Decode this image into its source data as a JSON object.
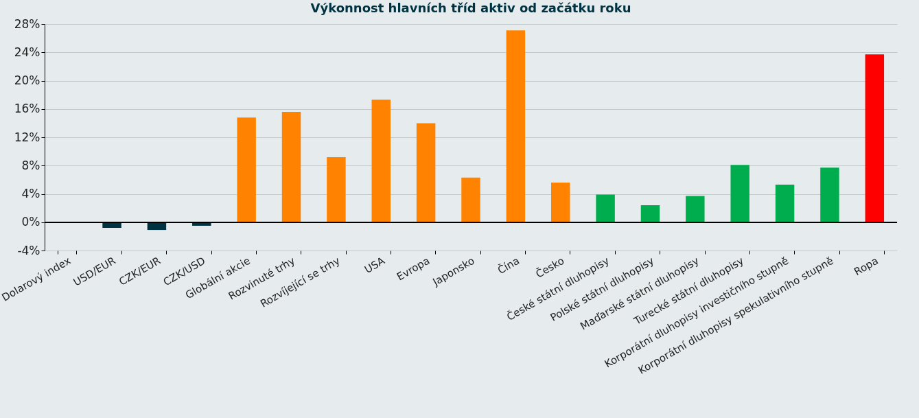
{
  "chart_data": {
    "type": "bar",
    "title": "Výkonnost hlavních tříd aktiv od začátku roku",
    "categories": [
      "Dolarový index",
      "USD/EUR",
      "CZK/EUR",
      "CZK/USD",
      "Globální akcie",
      "Rozvinuté trhy",
      "Rozvíjející se trhy",
      "USA",
      "Evropa",
      "Japonsko",
      "Čína",
      "Česko",
      "České státní dluhopisy",
      "Polské státní dluhopisy",
      "Maďarské státní dluhopisy",
      "Turecké státní dluhopisy",
      "Korporátní dluhopisy investičního stupně",
      "Korporátní dluhopisy spekulativního stupně",
      "Ropa"
    ],
    "values": [
      0,
      -0.8,
      -1.1,
      -0.5,
      14.8,
      15.6,
      9.2,
      17.3,
      14.0,
      6.3,
      27.1,
      5.6,
      3.9,
      2.4,
      3.7,
      8.1,
      5.3,
      7.7,
      23.7
    ],
    "colors": [
      "#003341",
      "#003341",
      "#003341",
      "#003341",
      "#ff8200",
      "#ff8200",
      "#ff8200",
      "#ff8200",
      "#ff8200",
      "#ff8200",
      "#ff8200",
      "#ff8200",
      "#00ad4e",
      "#00ad4e",
      "#00ad4e",
      "#00ad4e",
      "#00ad4e",
      "#00ad4e",
      "#ff0000"
    ],
    "ylim": [
      -4,
      28
    ],
    "yticks": [
      {
        "value": -4,
        "label": "-4%"
      },
      {
        "value": 0,
        "label": "0%"
      },
      {
        "value": 4,
        "label": "4%"
      },
      {
        "value": 8,
        "label": "8%"
      },
      {
        "value": 12,
        "label": "12%"
      },
      {
        "value": 16,
        "label": "16%"
      },
      {
        "value": 20,
        "label": "20%"
      },
      {
        "value": 24,
        "label": "24%"
      },
      {
        "value": 28,
        "label": "28%"
      }
    ],
    "grid": "y"
  }
}
